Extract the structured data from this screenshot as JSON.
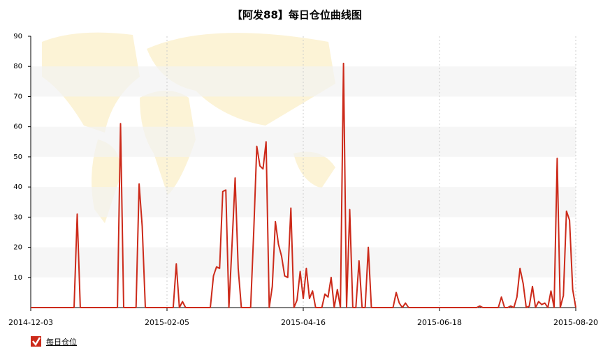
{
  "chart_data": {
    "type": "line",
    "title": "【阿发88】每日仓位曲线图",
    "categories": [
      "2014-12-03",
      null,
      null,
      null,
      null,
      null,
      null,
      null,
      null,
      null,
      null,
      null,
      null,
      null,
      null,
      null,
      null,
      null,
      null,
      null,
      null,
      null,
      null,
      null,
      null,
      null,
      null,
      null,
      null,
      null,
      null,
      null,
      null,
      null,
      null,
      null,
      null,
      null,
      null,
      null,
      null,
      null,
      null,
      null,
      "2015-02-05",
      null,
      null,
      null,
      null,
      null,
      null,
      null,
      null,
      null,
      null,
      null,
      null,
      null,
      null,
      null,
      null,
      null,
      null,
      null,
      null,
      null,
      null,
      null,
      null,
      null,
      null,
      null,
      null,
      null,
      null,
      null,
      null,
      null,
      null,
      null,
      null,
      null,
      null,
      null,
      null,
      null,
      null,
      null,
      "2015-04-16",
      null,
      null,
      null,
      null,
      null,
      null,
      null,
      null,
      null,
      null,
      null,
      null,
      null,
      null,
      null,
      null,
      null,
      null,
      null,
      null,
      null,
      null,
      null,
      null,
      null,
      null,
      null,
      null,
      null,
      null,
      null,
      null,
      null,
      null,
      null,
      null,
      null,
      null,
      null,
      null,
      null,
      null,
      null,
      "2015-06-18",
      null,
      null,
      null,
      null,
      null,
      null,
      null,
      null,
      null,
      null,
      null,
      null,
      null,
      null,
      null,
      null,
      null,
      null,
      null,
      null,
      null,
      null,
      null,
      null,
      null,
      null,
      null,
      null,
      null,
      null,
      null,
      null,
      null,
      null,
      null,
      null,
      null,
      null,
      null,
      null,
      null,
      null,
      null,
      "2015-08-20"
    ],
    "series": [
      {
        "name": "每日仓位",
        "color": "#cc2a1a",
        "values": [
          0,
          0,
          0,
          0,
          0,
          0,
          0,
          0,
          0,
          0,
          0,
          0,
          0,
          0,
          0,
          31,
          0,
          0,
          0,
          0,
          0,
          0,
          0,
          0,
          0,
          0,
          0,
          0,
          0,
          61,
          0,
          0,
          0,
          0,
          0,
          41,
          27,
          0,
          0,
          0,
          0,
          0,
          0,
          0,
          0,
          0,
          0,
          14.5,
          0,
          2,
          0,
          0,
          0,
          0,
          0,
          0,
          0,
          0,
          0,
          10.5,
          13.5,
          13,
          38.5,
          39,
          0,
          21,
          43,
          13,
          0,
          0,
          0,
          0,
          25,
          53.5,
          47,
          46,
          55,
          0,
          7,
          28.5,
          21,
          17,
          10.5,
          10,
          33,
          0,
          2.5,
          12,
          3,
          13,
          3,
          5.5,
          0,
          0,
          0,
          4.5,
          3.5,
          10,
          0,
          6,
          0,
          81,
          0,
          32.5,
          0,
          0,
          15.5,
          0,
          0,
          20,
          0,
          0,
          0,
          0,
          0,
          0,
          0,
          0,
          5,
          1.5,
          0,
          1.5,
          0,
          0,
          0,
          0,
          0,
          0,
          0,
          0,
          0,
          0,
          0,
          0,
          0,
          0,
          0,
          0,
          0,
          0,
          0,
          0,
          0,
          0,
          0,
          0.5,
          0,
          0,
          0,
          0,
          0,
          0,
          3.5,
          0,
          0,
          0.5,
          0,
          3.5,
          13,
          8,
          0,
          0.5,
          7,
          0,
          2,
          1,
          1.5,
          0,
          5.5,
          0,
          49.5,
          0,
          4,
          32,
          29,
          6,
          0
        ]
      }
    ],
    "ylim": [
      0,
      90
    ],
    "yticks": [
      10,
      20,
      30,
      40,
      50,
      60,
      70,
      80,
      90
    ],
    "grid": true,
    "legend": "bottom-left"
  }
}
